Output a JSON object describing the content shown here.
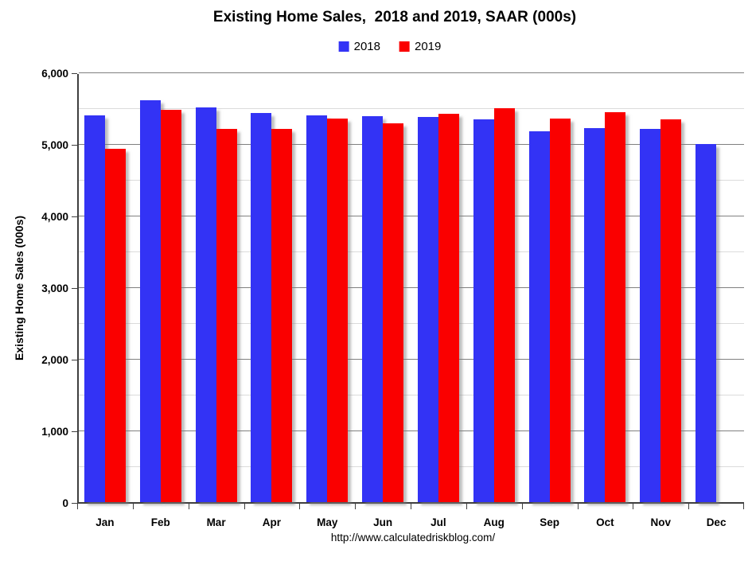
{
  "title": "Existing Home Sales,  2018 and 2019, SAAR (000s)",
  "footer_url": "http://www.calculatedriskblog.com/",
  "colors": {
    "series_2018": "#3333f5",
    "series_2019": "#fa0000",
    "major_grid": "#808080",
    "minor_grid": "#dbdbdb",
    "axis": "#3f3f3f"
  },
  "chart_data": {
    "type": "bar",
    "title": "Existing Home Sales,  2018 and 2019, SAAR (000s)",
    "xlabel": "",
    "ylabel": "Existing Home Sales (000s)",
    "categories": [
      "Jan",
      "Feb",
      "Mar",
      "Apr",
      "May",
      "Jun",
      "Jul",
      "Aug",
      "Sep",
      "Oct",
      "Nov",
      "Dec"
    ],
    "series": [
      {
        "name": "2018",
        "color": "#3333f5",
        "values": [
          5400,
          5610,
          5510,
          5430,
          5400,
          5390,
          5380,
          5340,
          5180,
          5220,
          5210,
          5000
        ]
      },
      {
        "name": "2019",
        "color": "#fa0000",
        "values": [
          4930,
          5480,
          5210,
          5210,
          5360,
          5290,
          5420,
          5500,
          5360,
          5440,
          5350,
          null
        ]
      }
    ],
    "ylim": [
      0,
      6000
    ],
    "y_major_step": 1000,
    "y_minor_step": 500,
    "y_tick_labels": [
      "0",
      "1,000",
      "2,000",
      "3,000",
      "4,000",
      "5,000",
      "6,000"
    ],
    "grid": true,
    "legend_position": "top"
  }
}
